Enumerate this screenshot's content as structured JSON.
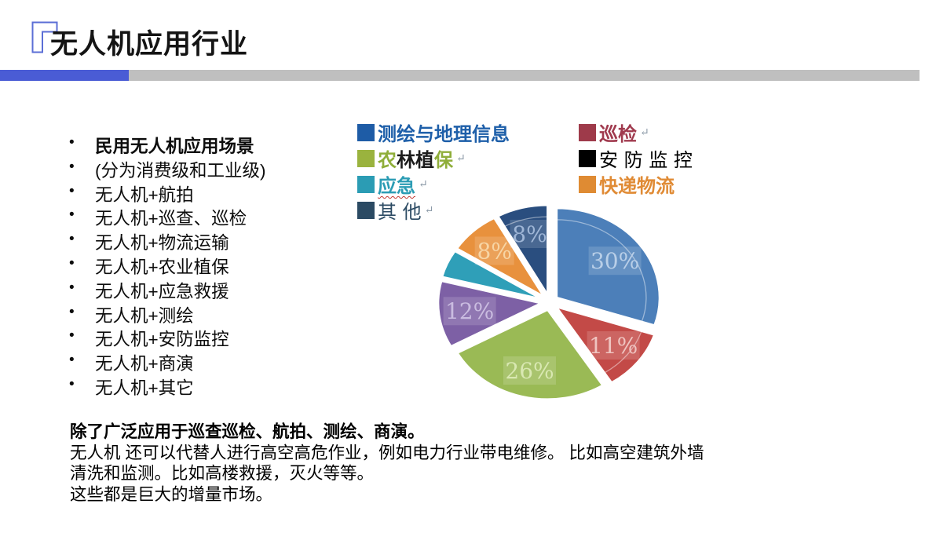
{
  "header": {
    "title": "无人机应用行业",
    "accent_color": "#4a5cd5",
    "bar_gray": "#bfbfbf",
    "corner_icon": "corner-bracket"
  },
  "bullet_list": {
    "items": [
      {
        "text": "民用无人机应用场景",
        "bold": true
      },
      {
        "text": "(分为消费级和工业级)",
        "bold": false
      },
      {
        "text": "无人机+航拍",
        "bold": false
      },
      {
        "text": "无人机+巡查、巡检",
        "bold": false
      },
      {
        "text": "无人机+物流运输",
        "bold": false
      },
      {
        "text": "无人机+农业植保",
        "bold": false
      },
      {
        "text": "无人机+应急救援",
        "bold": false
      },
      {
        "text": "无人机+测绘",
        "bold": false
      },
      {
        "text": "无人机+安防监控",
        "bold": false
      },
      {
        "text": "无人机+商演",
        "bold": false
      },
      {
        "text": "无人机+其它",
        "bold": false
      }
    ]
  },
  "legend": {
    "left": [
      {
        "name": "测绘与地理信息",
        "swatch": "#1e5ca6",
        "bold": true,
        "arrow": false,
        "parts": [
          {
            "text": "测绘与地理信息",
            "color": "#1e5fa9"
          }
        ]
      },
      {
        "name": "农林植保",
        "swatch": "#9ab33e",
        "bold": true,
        "arrow": true,
        "parts": [
          {
            "text": "农",
            "color": "#8fae3a"
          },
          {
            "text": "林植",
            "color": "#1c1c1c"
          },
          {
            "text": "保",
            "color": "#8fae3a"
          }
        ]
      },
      {
        "name": "应急",
        "swatch": "#2b9cb4",
        "bold": true,
        "arrow": true,
        "wavy_underline": true,
        "parts": [
          {
            "text": "应急",
            "color": "#2b9cb4"
          }
        ]
      },
      {
        "name": "其他",
        "swatch": "#2b4a63",
        "bold": false,
        "arrow": true,
        "parts": [
          {
            "text": "其 他",
            "color": "#2b4a63"
          }
        ]
      }
    ],
    "right": [
      {
        "name": "巡检",
        "swatch": "#9e3a4a",
        "bold": true,
        "arrow": true,
        "parts": [
          {
            "text": "巡检",
            "color": "#a03a4e"
          }
        ]
      },
      {
        "name": "安防监控",
        "swatch": "#000000",
        "bold": false,
        "arrow": false,
        "parts": [
          {
            "text": "安 防 监 控",
            "color": "#000000"
          }
        ]
      },
      {
        "name": "快递物流",
        "swatch": "#df8b33",
        "bold": true,
        "arrow": false,
        "parts": [
          {
            "text": "快递物流",
            "color": "#e08b35"
          }
        ]
      }
    ],
    "return_arrow_char": "↵"
  },
  "chart_data": {
    "type": "pie",
    "title": "",
    "start_angle_deg": 0,
    "clockwise": true,
    "exploded": true,
    "legend_position": "top",
    "slices": [
      {
        "name": "测绘与地理信息",
        "value": 30,
        "label": "30%",
        "color": "#4c7fb9",
        "label_color": "#b9cfe8"
      },
      {
        "name": "巡检",
        "value": 11,
        "label": "11%",
        "color": "#c34a47",
        "label_color": "#efc4c0"
      },
      {
        "name": "农林植保",
        "value": 26,
        "label": "26%",
        "color": "#9aba55",
        "label_color": "#d9e8b2"
      },
      {
        "name": "安防监控",
        "value": 12,
        "label": "12%",
        "color": "#7d60a5",
        "label_color": "#cabce0"
      },
      {
        "name": "应急",
        "value": 5,
        "label": "",
        "color": "#2f9fb8",
        "label_color": "#ffffff"
      },
      {
        "name": "快递物流",
        "value": 8,
        "label": "8%",
        "color": "#e8913d",
        "label_color": "#f7d5a5"
      },
      {
        "name": "其他",
        "value": 8,
        "label": "8%",
        "color": "#2a4e7f",
        "label_color": "#9fb6d6"
      }
    ]
  },
  "bottom_text": {
    "lines": [
      {
        "text": "除了广泛应用于巡查巡检、航拍、测绘、商演。",
        "bold": true
      },
      {
        "text": "无人机 还可以代替人进行高空高危作业，例如电力行业带电维修。 比如高空建筑外墙",
        "bold": false
      },
      {
        "text": "清洗和监测。比如高楼救援，灭火等等。",
        "bold": false
      },
      {
        "text": "这些都是巨大的增量市场。",
        "bold": false
      }
    ]
  }
}
